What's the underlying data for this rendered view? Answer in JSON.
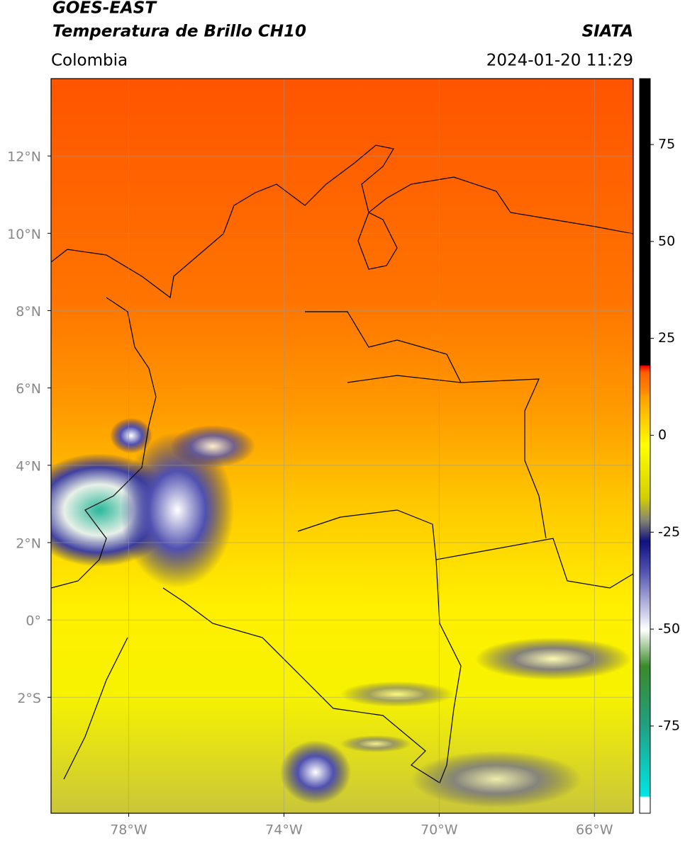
{
  "header": {
    "title": "GOES-EAST",
    "subtitle": "Temperatura de Brillo CH10",
    "region": "Colombia",
    "source": "SIATA",
    "datetime": "2024-01-20 11:29"
  },
  "map": {
    "latlim": [
      -5,
      14
    ],
    "lonlim": [
      -80,
      -65
    ],
    "lat_ticks": [
      {
        "value": 12,
        "label": "12°N"
      },
      {
        "value": 10,
        "label": "10°N"
      },
      {
        "value": 8,
        "label": "8°N"
      },
      {
        "value": 6,
        "label": "6°N"
      },
      {
        "value": 4,
        "label": "4°N"
      },
      {
        "value": 2,
        "label": "2°N"
      },
      {
        "value": 0,
        "label": "0°"
      },
      {
        "value": -2,
        "label": "2°S"
      }
    ],
    "lon_ticks": [
      {
        "value": -78,
        "label": "78°W"
      },
      {
        "value": -74,
        "label": "74°W"
      },
      {
        "value": -70,
        "label": "70°W"
      },
      {
        "value": -66,
        "label": "66°W"
      }
    ]
  },
  "colorbar": {
    "lim": [
      -97.5,
      92
    ],
    "ticks": [
      75,
      50,
      25,
      0,
      -25,
      -50,
      -75
    ]
  }
}
